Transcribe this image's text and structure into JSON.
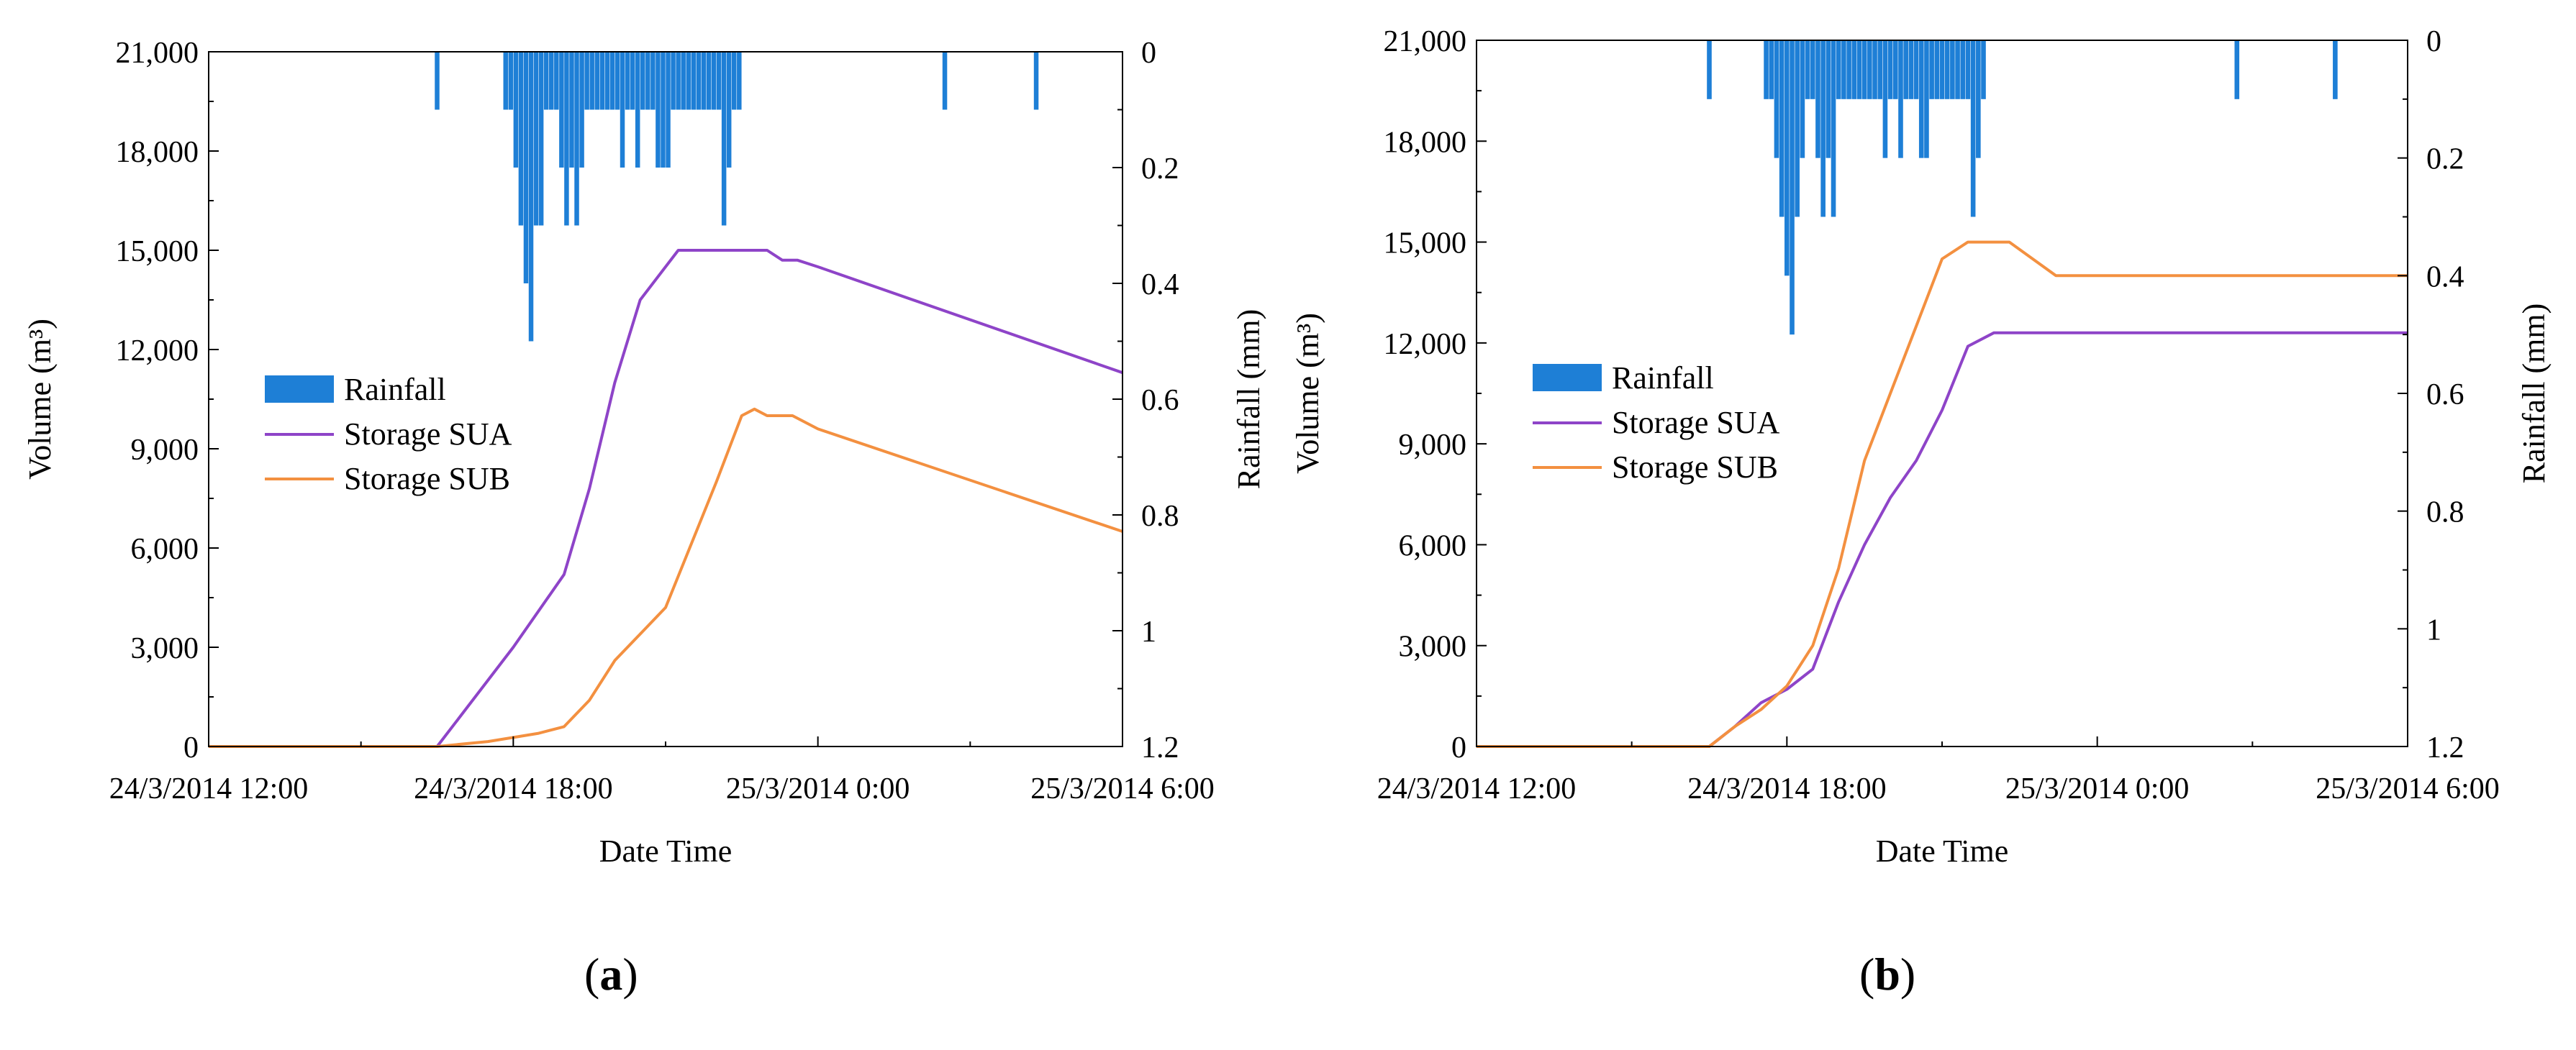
{
  "chart_data": [
    {
      "type": "line",
      "panel": "a",
      "xlabel": "Date Time",
      "ylabel": "Volume (m³)",
      "y2label": "Rainfall (mm)",
      "x_unit": "hours since 24/3/2014 12:00",
      "xlim": [
        0,
        18
      ],
      "ylim": [
        0,
        21000
      ],
      "y2lim": [
        0,
        1.2
      ],
      "y2_inverted": true,
      "x_ticks": [
        {
          "value": 0,
          "label": "24/3/2014 12:00"
        },
        {
          "value": 6,
          "label": "24/3/2014 18:00"
        },
        {
          "value": 12,
          "label": "25/3/2014 0:00"
        },
        {
          "value": 18,
          "label": "25/3/2014 6:00"
        }
      ],
      "y_ticks": [
        {
          "value": 0,
          "label": "0"
        },
        {
          "value": 3000,
          "label": "3,000"
        },
        {
          "value": 6000,
          "label": "6,000"
        },
        {
          "value": 9000,
          "label": "9,000"
        },
        {
          "value": 12000,
          "label": "12,000"
        },
        {
          "value": 15000,
          "label": "15,000"
        },
        {
          "value": 18000,
          "label": "18,000"
        },
        {
          "value": 21000,
          "label": "21,000"
        }
      ],
      "y2_ticks": [
        {
          "value": 0,
          "label": "0"
        },
        {
          "value": 0.2,
          "label": "0.2"
        },
        {
          "value": 0.4,
          "label": "0.4"
        },
        {
          "value": 0.6,
          "label": "0.6"
        },
        {
          "value": 0.8,
          "label": "0.8"
        },
        {
          "value": 1,
          "label": "1"
        },
        {
          "value": 1.2,
          "label": "1.2"
        }
      ],
      "legend": [
        "Rainfall",
        "Storage SUA",
        "Storage SUB"
      ],
      "legend_position": "middle-left",
      "series": [
        {
          "name": "Storage SUA",
          "color": "#8e44c8",
          "style": "line",
          "x": [
            0,
            4.5,
            5,
            6,
            7,
            7.5,
            8,
            8.5,
            9.25,
            10,
            10.5,
            11,
            11.3,
            11.6,
            12,
            18
          ],
          "y": [
            0,
            0,
            1000,
            3000,
            5200,
            7800,
            11000,
            13500,
            15000,
            15000,
            15000,
            15000,
            14700,
            14700,
            14500,
            11300
          ]
        },
        {
          "name": "Storage SUB",
          "color": "#f39040",
          "style": "line",
          "x": [
            0,
            4.5,
            5.5,
            6.5,
            7,
            7.5,
            8,
            8.5,
            9,
            10,
            10.5,
            10.75,
            11,
            11.5,
            12,
            18
          ],
          "y": [
            0,
            0,
            150,
            400,
            600,
            1400,
            2600,
            3400,
            4200,
            8000,
            10000,
            10200,
            10000,
            10000,
            9600,
            6500
          ]
        },
        {
          "name": "Rainfall",
          "color": "#1e7fd6",
          "style": "bar",
          "axis": "y2",
          "x": [
            4.5,
            5.85,
            5.95,
            6.05,
            6.15,
            6.25,
            6.35,
            6.45,
            6.55,
            6.65,
            6.75,
            6.85,
            6.95,
            7.05,
            7.15,
            7.25,
            7.35,
            7.45,
            7.55,
            7.65,
            7.75,
            7.85,
            7.95,
            8.05,
            8.15,
            8.25,
            8.35,
            8.45,
            8.55,
            8.65,
            8.75,
            8.85,
            8.95,
            9.05,
            9.15,
            9.25,
            9.35,
            9.45,
            9.55,
            9.65,
            9.75,
            9.85,
            9.95,
            10.05,
            10.15,
            10.25,
            10.35,
            10.45,
            14.5,
            16.3
          ],
          "y": [
            0.1,
            0.1,
            0.1,
            0.2,
            0.3,
            0.4,
            0.5,
            0.3,
            0.3,
            0.1,
            0.1,
            0.1,
            0.2,
            0.3,
            0.2,
            0.3,
            0.2,
            0.1,
            0.1,
            0.1,
            0.1,
            0.1,
            0.1,
            0.1,
            0.2,
            0.1,
            0.1,
            0.2,
            0.1,
            0.1,
            0.1,
            0.2,
            0.2,
            0.2,
            0.1,
            0.1,
            0.1,
            0.1,
            0.1,
            0.1,
            0.1,
            0.1,
            0.1,
            0.1,
            0.3,
            0.2,
            0.1,
            0.1,
            0.1,
            0.1
          ]
        }
      ]
    },
    {
      "type": "line",
      "panel": "b",
      "xlabel": "Date Time",
      "ylabel": "Volume (m³)",
      "y2label": "Rainfall (mm)",
      "x_unit": "hours since 24/3/2014 12:00",
      "xlim": [
        0,
        18
      ],
      "ylim": [
        0,
        21000
      ],
      "y2lim": [
        0,
        1.2
      ],
      "y2_inverted": true,
      "x_ticks": [
        {
          "value": 0,
          "label": "24/3/2014 12:00"
        },
        {
          "value": 6,
          "label": "24/3/2014 18:00"
        },
        {
          "value": 12,
          "label": "25/3/2014 0:00"
        },
        {
          "value": 18,
          "label": "25/3/2014 6:00"
        }
      ],
      "y_ticks": [
        {
          "value": 0,
          "label": "0"
        },
        {
          "value": 3000,
          "label": "3,000"
        },
        {
          "value": 6000,
          "label": "6,000"
        },
        {
          "value": 9000,
          "label": "9,000"
        },
        {
          "value": 12000,
          "label": "12,000"
        },
        {
          "value": 15000,
          "label": "15,000"
        },
        {
          "value": 18000,
          "label": "18,000"
        },
        {
          "value": 21000,
          "label": "21,000"
        }
      ],
      "y2_ticks": [
        {
          "value": 0,
          "label": "0"
        },
        {
          "value": 0.2,
          "label": "0.2"
        },
        {
          "value": 0.4,
          "label": "0.4"
        },
        {
          "value": 0.6,
          "label": "0.6"
        },
        {
          "value": 0.8,
          "label": "0.8"
        },
        {
          "value": 1,
          "label": "1"
        },
        {
          "value": 1.2,
          "label": "1.2"
        }
      ],
      "legend": [
        "Rainfall",
        "Storage SUA",
        "Storage SUB"
      ],
      "legend_position": "middle-left",
      "series": [
        {
          "name": "Storage SUA",
          "color": "#8e44c8",
          "style": "line",
          "x": [
            0,
            4.5,
            5,
            5.5,
            6,
            6.5,
            7,
            7.5,
            8,
            8.5,
            9,
            9.5,
            10,
            10.5,
            18
          ],
          "y": [
            0,
            0,
            600,
            1300,
            1700,
            2300,
            4300,
            6000,
            7400,
            8500,
            10000,
            11900,
            12300,
            12300,
            12300
          ]
        },
        {
          "name": "Storage SUB",
          "color": "#f39040",
          "style": "line",
          "x": [
            0,
            4.5,
            5,
            5.5,
            6,
            6.5,
            7,
            7.5,
            8,
            8.5,
            9,
            9.5,
            10,
            10.3,
            11.2,
            18
          ],
          "y": [
            0,
            0,
            600,
            1100,
            1800,
            3000,
            5300,
            8500,
            10500,
            12500,
            14500,
            15000,
            15000,
            15000,
            14000,
            14000
          ]
        },
        {
          "name": "Rainfall",
          "color": "#1e7fd6",
          "style": "bar",
          "axis": "y2",
          "x": [
            4.5,
            5.6,
            5.7,
            5.8,
            5.9,
            6.0,
            6.1,
            6.2,
            6.3,
            6.4,
            6.5,
            6.6,
            6.7,
            6.8,
            6.9,
            7.0,
            7.1,
            7.2,
            7.3,
            7.4,
            7.5,
            7.6,
            7.7,
            7.8,
            7.9,
            8.0,
            8.1,
            8.2,
            8.3,
            8.4,
            8.5,
            8.6,
            8.7,
            8.8,
            8.9,
            9.0,
            9.1,
            9.2,
            9.3,
            9.4,
            9.5,
            9.6,
            9.7,
            9.8,
            14.7,
            16.6
          ],
          "y": [
            0.1,
            0.1,
            0.1,
            0.2,
            0.3,
            0.4,
            0.5,
            0.3,
            0.2,
            0.1,
            0.1,
            0.2,
            0.3,
            0.2,
            0.3,
            0.1,
            0.1,
            0.1,
            0.1,
            0.1,
            0.1,
            0.1,
            0.1,
            0.1,
            0.2,
            0.1,
            0.1,
            0.2,
            0.1,
            0.1,
            0.1,
            0.2,
            0.2,
            0.1,
            0.1,
            0.1,
            0.1,
            0.1,
            0.1,
            0.1,
            0.1,
            0.3,
            0.2,
            0.1,
            0.1,
            0.1
          ]
        }
      ]
    }
  ],
  "panel_labels": [
    {
      "open": "(",
      "letter": "a",
      "close": ")"
    },
    {
      "open": "(",
      "letter": "b",
      "close": ")"
    }
  ]
}
